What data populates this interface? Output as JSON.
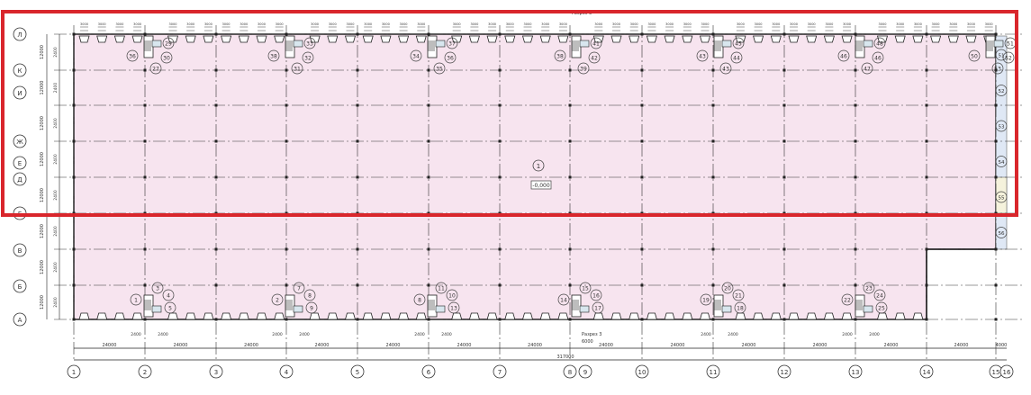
{
  "colors": {
    "floor_fill": "#f7e4ef",
    "highlight": "#d9262c",
    "line": "#222222",
    "strip_blue": "#dfe8f5",
    "strip_yellow": "#f5f2dc"
  },
  "columns": [
    "1",
    "2",
    "3",
    "4",
    "5",
    "6",
    "7",
    "8",
    "9",
    "10",
    "11",
    "12",
    "13",
    "14",
    "15",
    "16"
  ],
  "rows": [
    "Л",
    "К",
    "И",
    "Ж",
    "Е",
    "Д",
    "Г",
    "В",
    "Б",
    "А"
  ],
  "bay_dimension": "24000",
  "last_bay_dimension": "4000",
  "overall_dimension": "317000",
  "row_dimension": "12000",
  "small_dimension": "2400",
  "dock_label": "3000",
  "section_mark": {
    "label": "Разрез 3",
    "value": "6000"
  },
  "section_mark_top": "Разрез 3",
  "zone_number": "1",
  "level_mark": "-0,000",
  "top_callouts": [
    [
      "36",
      "29",
      "30",
      "27"
    ],
    [
      "38",
      "33",
      "32",
      "31"
    ],
    [
      "34",
      "37",
      "36",
      "35"
    ],
    [
      "38",
      "41",
      "42",
      "39"
    ],
    [
      "43",
      "45",
      "44",
      "43"
    ],
    [
      "46",
      "48",
      "46",
      "47"
    ],
    [
      "50",
      "51",
      "52",
      "53"
    ]
  ],
  "bottom_callouts": [
    [
      "1",
      "3",
      "4",
      "5"
    ],
    [
      "2",
      "7",
      "8",
      "9"
    ],
    [
      "8",
      "11",
      "10",
      "13"
    ],
    [
      "14",
      "15",
      "16",
      "17"
    ],
    [
      "19",
      "20",
      "21",
      "18"
    ],
    [
      "22",
      "23",
      "24",
      "25"
    ]
  ],
  "right_callouts": [
    "51",
    "52",
    "53",
    "54",
    "55",
    "56"
  ]
}
